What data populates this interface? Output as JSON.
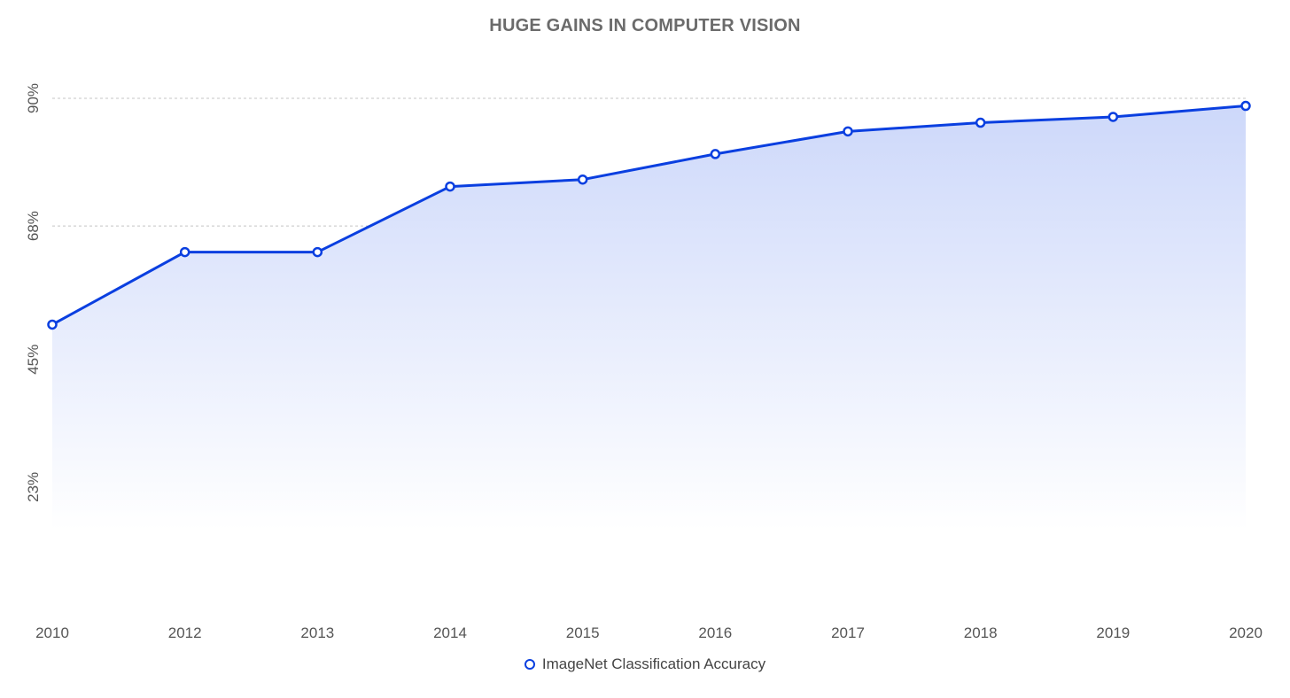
{
  "chart_data": {
    "type": "area",
    "title": "HUGE GAINS IN COMPUTER VISION",
    "categories": [
      "2010",
      "2012",
      "2013",
      "2014",
      "2015",
      "2016",
      "2017",
      "2018",
      "2019",
      "2020"
    ],
    "series": [
      {
        "name": "ImageNet Classification Accuracy",
        "values": [
          51,
          63.5,
          63.5,
          74.8,
          76,
          80.4,
          84.3,
          85.8,
          86.8,
          88.7
        ]
      }
    ],
    "y_ticks": [
      "23%",
      "45%",
      "68%",
      "90%"
    ],
    "y_tick_values": [
      23,
      45,
      68,
      90
    ],
    "ylim": [
      15.5,
      90
    ],
    "xlabel": "",
    "ylabel": "",
    "grid": true,
    "legend_position": "bottom-center"
  },
  "colors": {
    "line": "#0a3fe0",
    "fill": "#c9d4fa",
    "grid": "#c4c4c4",
    "tick_text": "#555555",
    "title": "#6b6b6b"
  }
}
